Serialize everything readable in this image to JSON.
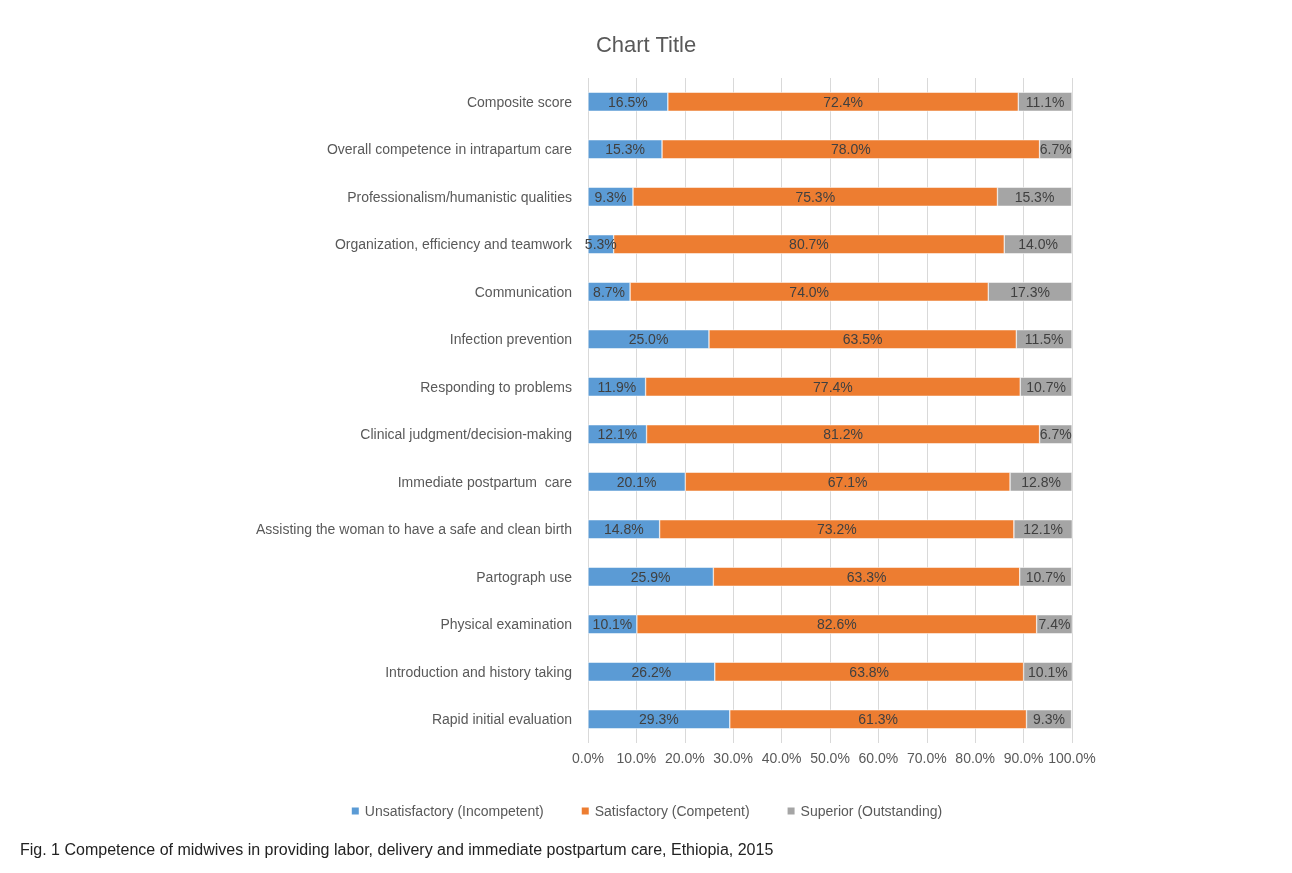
{
  "chart_data": {
    "type": "bar",
    "orientation": "horizontal",
    "stacked": true,
    "title": "Chart Title",
    "categories": [
      "Composite score",
      "Overall competence in intrapartum care",
      "Professionalism/humanistic qualities",
      "Organization, efficiency and teamwork",
      "Communication",
      "Infection prevention",
      "Responding to problems",
      "Clinical judgment/decision-making",
      "Immediate postpartum  care",
      "Assisting the woman to have a safe and clean birth",
      "Partograph use",
      "Physical examination",
      "Introduction and history taking",
      "Rapid initial evaluation"
    ],
    "series": [
      {
        "name": "Unsatisfactory (Incompetent)",
        "color": "#5b9bd5",
        "values": [
          16.5,
          15.3,
          9.3,
          5.3,
          8.7,
          25.0,
          11.9,
          12.1,
          20.1,
          14.8,
          25.9,
          10.1,
          26.2,
          29.3
        ],
        "value_labels": [
          "16.5%",
          "15.3%",
          "9.3%",
          "5.3%",
          "8.7%",
          "25.0%",
          "11.9%",
          "12.1%",
          "20.1%",
          "14.8%",
          "25.9%",
          "10.1%",
          "26.2%",
          "29.3%"
        ]
      },
      {
        "name": "Satisfactory (Competent)",
        "color": "#ed7d31",
        "values": [
          72.4,
          78.0,
          75.3,
          80.7,
          74.0,
          63.5,
          77.4,
          81.2,
          67.1,
          73.2,
          63.3,
          82.6,
          63.8,
          61.3
        ],
        "value_labels": [
          "72.4%",
          "78.0%",
          "75.3%",
          "80.7%",
          "74.0%",
          "63.5%",
          "77.4%",
          "81.2%",
          "67.1%",
          "73.2%",
          "63.3%",
          "82.6%",
          "63.8%",
          "61.3%"
        ]
      },
      {
        "name": "Superior (Outstanding)",
        "color": "#a5a5a5",
        "values": [
          11.1,
          6.7,
          15.3,
          14.0,
          17.3,
          11.5,
          10.7,
          6.7,
          12.8,
          12.1,
          10.7,
          7.4,
          10.1,
          9.3
        ],
        "value_labels": [
          "11.1%",
          "6.7%",
          "15.3%",
          "14.0%",
          "17.3%",
          "11.5%",
          "10.7%",
          "6.7%",
          "12.8%",
          "12.1%",
          "10.7%",
          "7.4%",
          "10.1%",
          "9.3%"
        ]
      }
    ],
    "xlim": [
      0,
      100
    ],
    "xticks": [
      {
        "value": 0,
        "label": "0.0%"
      },
      {
        "value": 10,
        "label": "10.0%"
      },
      {
        "value": 20,
        "label": "20.0%"
      },
      {
        "value": 30,
        "label": "30.0%"
      },
      {
        "value": 40,
        "label": "40.0%"
      },
      {
        "value": 50,
        "label": "50.0%"
      },
      {
        "value": 60,
        "label": "60.0%"
      },
      {
        "value": 70,
        "label": "70.0%"
      },
      {
        "value": 80,
        "label": "80.0%"
      },
      {
        "value": 90,
        "label": "90.0%"
      },
      {
        "value": 100,
        "label": "100.0%"
      }
    ],
    "grid": "x",
    "legend": "bottom",
    "annotations": [
      "Fig. 1 Competence of midwives in providing labor, delivery and immediate postpartum care, Ethiopia, 2015"
    ]
  }
}
